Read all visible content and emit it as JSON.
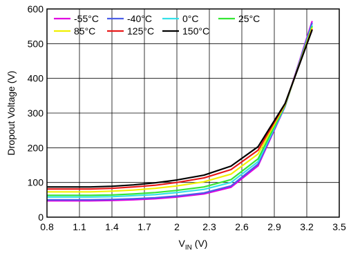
{
  "chart_data": {
    "type": "line",
    "xlabel": {
      "main": "V",
      "sub": "IN",
      "unit": " (V)"
    },
    "ylabel": "Dropout Voltage (V)",
    "xlim": [
      0.8,
      3.5
    ],
    "ylim": [
      0,
      600
    ],
    "xticks": [
      0.8,
      1.1,
      1.4,
      1.7,
      2.0,
      2.3,
      2.6,
      2.9,
      3.2,
      3.5
    ],
    "xtick_labels": [
      "0.8",
      "1.1",
      "1.4",
      "1.7",
      "2",
      "2.3",
      "2.6",
      "2.9",
      "3.2",
      "3.5"
    ],
    "yticks": [
      0,
      100,
      200,
      300,
      400,
      500,
      600
    ],
    "ytick_labels": [
      "0",
      "100",
      "200",
      "300",
      "400",
      "500",
      "600"
    ],
    "grid": true,
    "legend_position": "top-left",
    "x": [
      0.8,
      1.0,
      1.2,
      1.4,
      1.6,
      1.8,
      2.0,
      2.25,
      2.5,
      2.75,
      3.0,
      3.25
    ],
    "series": [
      {
        "name": "-55°C",
        "color": "#e000e0",
        "values": [
          47,
          47,
          47,
          48,
          50,
          53,
          58,
          67,
          86,
          148,
          320,
          565
        ]
      },
      {
        "name": "-40°C",
        "color": "#4a5ee8",
        "values": [
          50,
          50,
          50,
          51,
          53,
          56,
          61,
          70,
          90,
          153,
          320,
          560
        ]
      },
      {
        "name": "0°C",
        "color": "#33e0e8",
        "values": [
          58,
          58,
          58,
          59,
          62,
          65,
          71,
          80,
          100,
          160,
          322,
          553
        ]
      },
      {
        "name": "25°C",
        "color": "#33e633",
        "values": [
          63,
          63,
          63,
          64,
          67,
          71,
          77,
          87,
          108,
          168,
          323,
          550
        ]
      },
      {
        "name": "85°C",
        "color": "#f0f000",
        "values": [
          73,
          73,
          73,
          75,
          78,
          83,
          90,
          102,
          124,
          182,
          325,
          546
        ]
      },
      {
        "name": "125°C",
        "color": "#e81818",
        "values": [
          81,
          81,
          81,
          83,
          87,
          92,
          100,
          113,
          137,
          193,
          327,
          542
        ]
      },
      {
        "name": "150°C",
        "color": "#000000",
        "values": [
          87,
          87,
          87,
          89,
          93,
          99,
          107,
          121,
          147,
          203,
          328,
          540
        ]
      }
    ]
  }
}
